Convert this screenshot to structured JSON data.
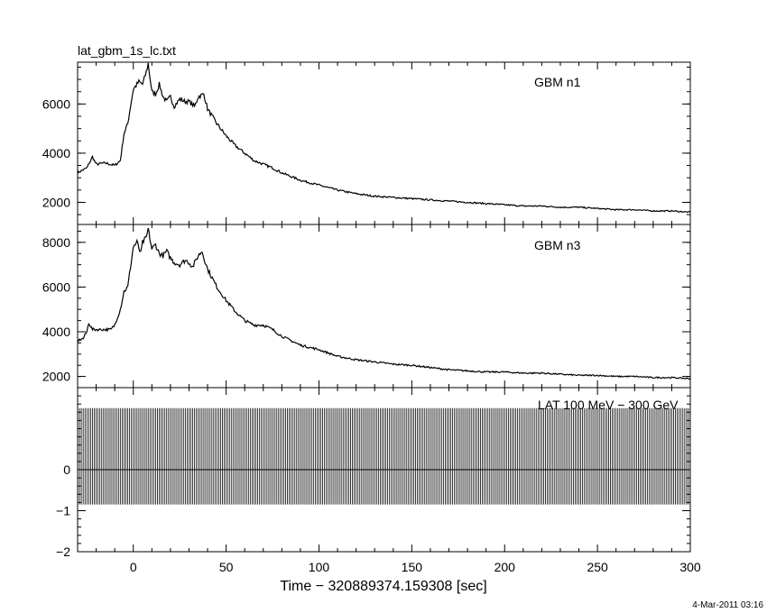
{
  "chart_data": {
    "type": "line",
    "file_title": "lat_gbm_1s_lc.txt",
    "xlabel": "Time − 320889374.159308 [sec]",
    "timestamp": "4-Mar-2011 03:16",
    "xlim": [
      -30,
      300
    ],
    "x_ticks": [
      0,
      50,
      100,
      150,
      200,
      250,
      300
    ],
    "x_tick_labels": [
      "0",
      "50",
      "100",
      "150",
      "200",
      "250",
      "300"
    ],
    "panels": [
      {
        "name": "GBM n1",
        "ylim": [
          1100,
          7700
        ],
        "y_ticks": [
          2000,
          4000,
          6000
        ],
        "y_tick_labels": [
          "2000",
          "4000",
          "6000"
        ],
        "series": [
          {
            "name": "GBM n1",
            "x": [
              -30,
              -25,
              -22,
              -20,
              -15,
              -10,
              -7,
              -5,
              -3,
              0,
              3,
              5,
              7,
              8,
              10,
              12,
              14,
              16,
              18,
              20,
              22,
              25,
              28,
              30,
              33,
              35,
              38,
              40,
              45,
              50,
              55,
              60,
              65,
              70,
              75,
              80,
              90,
              100,
              110,
              120,
              130,
              140,
              150,
              160,
              170,
              180,
              190,
              200,
              210,
              220,
              230,
              240,
              250,
              260,
              270,
              280,
              290,
              300
            ],
            "y": [
              3200,
              3400,
              3850,
              3550,
              3600,
              3500,
              3700,
              4800,
              5200,
              6600,
              6900,
              6800,
              7300,
              7650,
              6500,
              6400,
              6800,
              6300,
              6100,
              6300,
              5900,
              6200,
              6100,
              6100,
              5900,
              6300,
              6400,
              5800,
              5200,
              4700,
              4300,
              4000,
              3700,
              3550,
              3400,
              3200,
              2900,
              2700,
              2500,
              2350,
              2250,
              2200,
              2150,
              2100,
              2050,
              2000,
              1950,
              1900,
              1850,
              1850,
              1800,
              1800,
              1750,
              1700,
              1700,
              1650,
              1650,
              1600
            ]
          }
        ]
      },
      {
        "name": "GBM n3",
        "ylim": [
          1500,
          8800
        ],
        "y_ticks": [
          2000,
          4000,
          6000,
          8000
        ],
        "y_tick_labels": [
          "2000",
          "4000",
          "6000",
          "8000"
        ],
        "series": [
          {
            "name": "GBM n3",
            "x": [
              -30,
              -27,
              -25,
              -24,
              -22,
              -20,
              -15,
              -12,
              -10,
              -7,
              -5,
              -3,
              0,
              2,
              4,
              5,
              7,
              8,
              10,
              12,
              14,
              16,
              18,
              20,
              22,
              25,
              28,
              30,
              32,
              35,
              37,
              40,
              45,
              50,
              55,
              60,
              65,
              70,
              75,
              80,
              90,
              100,
              110,
              120,
              130,
              140,
              150,
              160,
              170,
              180,
              190,
              200,
              210,
              220,
              230,
              240,
              250,
              260,
              270,
              280,
              290,
              300
            ],
            "y": [
              3600,
              3700,
              4000,
              4400,
              4100,
              4100,
              4100,
              4100,
              4300,
              5000,
              5800,
              6000,
              7800,
              8000,
              7500,
              8000,
              8200,
              8600,
              7700,
              7900,
              7500,
              7400,
              7600,
              7300,
              7100,
              7000,
              7200,
              7100,
              6900,
              7400,
              7600,
              6800,
              6000,
              5400,
              4900,
              4500,
              4300,
              4300,
              4100,
              3800,
              3400,
              3200,
              2900,
              2750,
              2650,
              2550,
              2500,
              2400,
              2300,
              2250,
              2200,
              2200,
              2150,
              2150,
              2100,
              2050,
              2050,
              2000,
              2000,
              1950,
              1950,
              1900
            ]
          }
        ]
      },
      {
        "name": "LAT 100 MeV − 300 GeV",
        "ylim": [
          -2,
          2
        ],
        "y_ticks": [
          -2,
          -1,
          0
        ],
        "y_tick_labels": [
          "−2",
          "−1",
          "0"
        ],
        "baseline": 0,
        "bar_top": 1.5,
        "bar_bottom": -0.85,
        "bar_count": 330
      }
    ]
  }
}
